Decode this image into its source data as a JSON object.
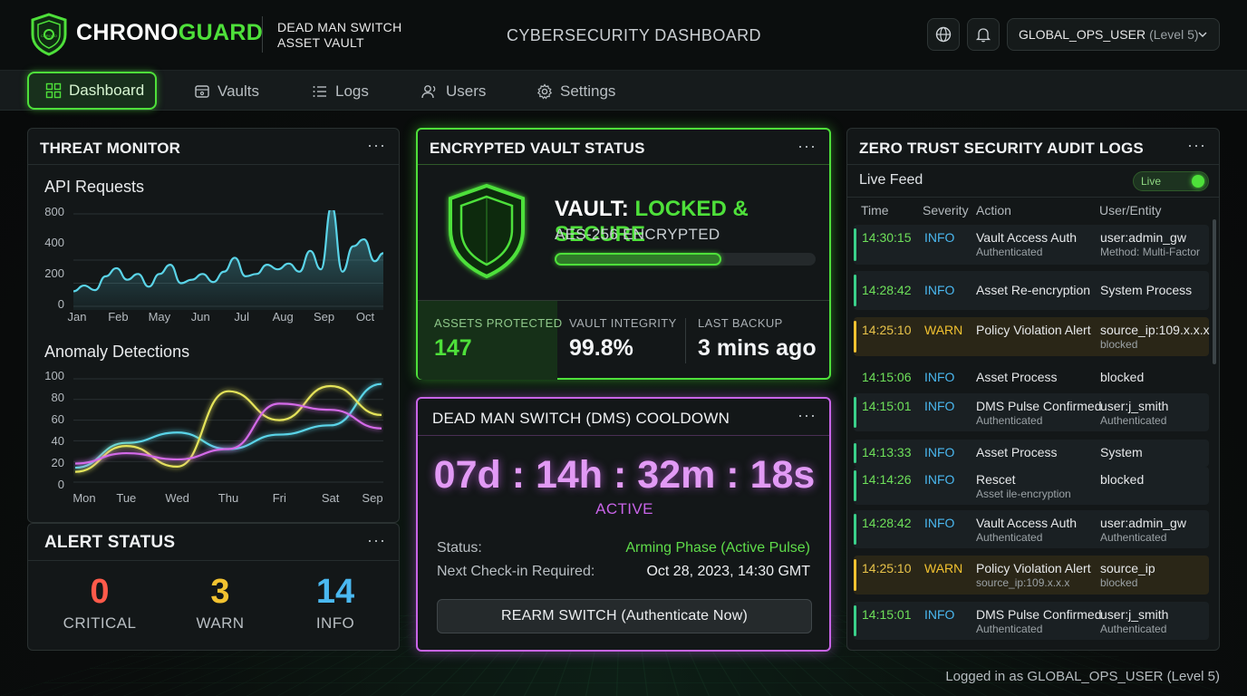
{
  "header": {
    "brand_part1": "CHRONO",
    "brand_part2": "GUARD",
    "logo_text": "CHRONO",
    "subtitle_line1": "DEAD MAN SWITCH",
    "subtitle_line2": "ASSET VAULT",
    "dashboard_title": "CYBERSECURITY DASHBOARD",
    "user_name": "GLOBAL_OPS_USER",
    "user_level": "(Level 5)",
    "icons": [
      "globe-icon",
      "bell-icon",
      "chevron-down-icon"
    ]
  },
  "nav": {
    "items": [
      {
        "label": "Dashboard",
        "icon": "grid-icon",
        "active": true
      },
      {
        "label": "Vaults",
        "icon": "vault-icon",
        "active": false
      },
      {
        "label": "Logs",
        "icon": "list-icon",
        "active": false
      },
      {
        "label": "Users",
        "icon": "users-icon",
        "active": false
      },
      {
        "label": "Settings",
        "icon": "gear-icon",
        "active": false
      }
    ]
  },
  "threat_monitor": {
    "title": "THREAT MONITOR",
    "menu": "···",
    "api_chart_title": "API Requests",
    "anomaly_chart_title": "Anomaly Detections"
  },
  "chart_data": [
    {
      "type": "area",
      "title": "API Requests",
      "categories": [
        "Jan",
        "Feb",
        "May",
        "Jun",
        "Jul",
        "Aug",
        "Sep",
        "Oct"
      ],
      "y_ticks": [
        0,
        200,
        400,
        600,
        800
      ],
      "ylim": [
        0,
        800
      ],
      "color": "#5ad4e8",
      "x": [
        0,
        0.25,
        0.5,
        0.75,
        1,
        1.25,
        1.5,
        1.75,
        2,
        2.25,
        2.5,
        2.75,
        3,
        3.25,
        3.5,
        3.75,
        4,
        4.25,
        4.5,
        4.75,
        5,
        5.25,
        5.5,
        5.75,
        6,
        6.25,
        6.5,
        6.75,
        7,
        7.2
      ],
      "values": [
        130,
        180,
        140,
        260,
        330,
        230,
        280,
        170,
        280,
        360,
        200,
        230,
        280,
        210,
        300,
        420,
        260,
        280,
        360,
        320,
        370,
        300,
        480,
        320,
        870,
        300,
        520,
        580,
        390,
        460
      ],
      "grid": true
    },
    {
      "type": "line",
      "title": "Anomaly Detections",
      "categories": [
        "Mon",
        "Tue",
        "Wed",
        "Thu",
        "Fri",
        "Sat",
        "Sep"
      ],
      "y_ticks": [
        0,
        20,
        40,
        60,
        80,
        100
      ],
      "ylim": [
        0,
        100
      ],
      "grid": true,
      "series": [
        {
          "color": "#5ad4e8",
          "values": [
            14,
            38,
            48,
            32,
            46,
            55,
            95
          ]
        },
        {
          "color": "#e5e45a",
          "values": [
            10,
            35,
            15,
            88,
            60,
            93,
            65
          ]
        },
        {
          "color": "#d46ae8",
          "values": [
            18,
            28,
            22,
            32,
            76,
            70,
            52
          ]
        }
      ]
    }
  ],
  "alert_status": {
    "title": "ALERT STATUS",
    "menu": "···",
    "items": [
      {
        "value": "0",
        "label": "CRITICAL",
        "color": "#ff5a4a"
      },
      {
        "value": "3",
        "label": "WARN",
        "color": "#f2c230"
      },
      {
        "value": "14",
        "label": "INFO",
        "color": "#4ab8f0"
      }
    ]
  },
  "vault": {
    "title": "ENCRYPTED VAULT STATUS",
    "menu": "···",
    "status_prefix": "VAULT: ",
    "status_value": "LOCKED & SECURE",
    "encryption": "AES-256 ENCRYPTED",
    "progress": 0.64,
    "stats": [
      {
        "label": "ASSETS PROTECTED",
        "value": "147"
      },
      {
        "label": "VAULT INTEGRITY",
        "value": "99.8%"
      },
      {
        "label": "LAST BACKUP",
        "value": "3 mins ago"
      }
    ]
  },
  "dms": {
    "title": "DEAD MAN SWITCH (DMS) COOLDOWN",
    "menu": "···",
    "countdown": "07d : 14h : 32m : 18s",
    "state": "ACTIVE",
    "status_label": "Status:",
    "status_value": "Arming Phase (Active Pulse)",
    "checkin_label": "Next Check-in Required:",
    "checkin_value": "Oct 28, 2023, 14:30 GMT",
    "button_label": "REARM SWITCH (Authenticate Now)"
  },
  "audit": {
    "title": "ZERO TRUST SECURITY AUDIT LOGS",
    "menu": "···",
    "feed_label": "Live Feed",
    "toggle_label": "Live",
    "columns": [
      "Time",
      "Severity",
      "Action",
      "User/Entity"
    ],
    "rows": [
      {
        "time": "14:30:15",
        "sev": "INFO",
        "action": "Vault Access Auth",
        "action_sub": "Authenticated",
        "user": "user:admin_gw",
        "user_sub": "Method: Multi-Factor"
      },
      {
        "time": "14:28:42",
        "sev": "INFO",
        "action": "Asset Re-encryption",
        "action_sub": "",
        "user": "System Process",
        "user_sub": ""
      },
      {
        "time": "14:25:10",
        "sev": "WARN",
        "action": "Policy Violation Alert",
        "action_sub": "",
        "user": "source_ip:109.x.x.x",
        "user_sub": "blocked"
      },
      {
        "time": "14:15:06",
        "sev": "INFO",
        "action": "Asset Process",
        "action_sub": "",
        "user": "blocked",
        "user_sub": ""
      },
      {
        "time": "14:15:01",
        "sev": "INFO",
        "action": "DMS Pulse Confirmed",
        "action_sub": "Authenticated",
        "user": "user:j_smith",
        "user_sub": "Authenticated"
      },
      {
        "time": "14:13:33",
        "sev": "INFO",
        "action": "Asset Process",
        "action_sub": "",
        "user": "System",
        "user_sub": ""
      },
      {
        "time": "14:14:26",
        "sev": "INFO",
        "action": "Rescet",
        "action_sub": "Asset ile-encryption",
        "user": "blocked",
        "user_sub": ""
      },
      {
        "time": "14:28:42",
        "sev": "INFO",
        "action": "Vault Access Auth",
        "action_sub": "Authenticated",
        "user": "user:admin_gw",
        "user_sub": "Authenticated"
      },
      {
        "time": "14:25:10",
        "sev": "WARN",
        "action": "Policy Violation Alert",
        "action_sub": "source_ip:109.x.x.x",
        "user": "source_ip",
        "user_sub": "blocked"
      },
      {
        "time": "14:15:01",
        "sev": "INFO",
        "action": "DMS Pulse Confirmed",
        "action_sub": "Authenticated",
        "user": "user:j_smith",
        "user_sub": "Authenticated"
      }
    ]
  },
  "footer": {
    "text": "Logged in as GLOBAL_OPS_USER (Level 5)"
  },
  "colors": {
    "accent_green": "#4ee03a",
    "accent_purple": "#c864e8",
    "info_blue": "#4ab8f0",
    "warn_yellow": "#f2c230",
    "critical_red": "#ff5a4a"
  }
}
